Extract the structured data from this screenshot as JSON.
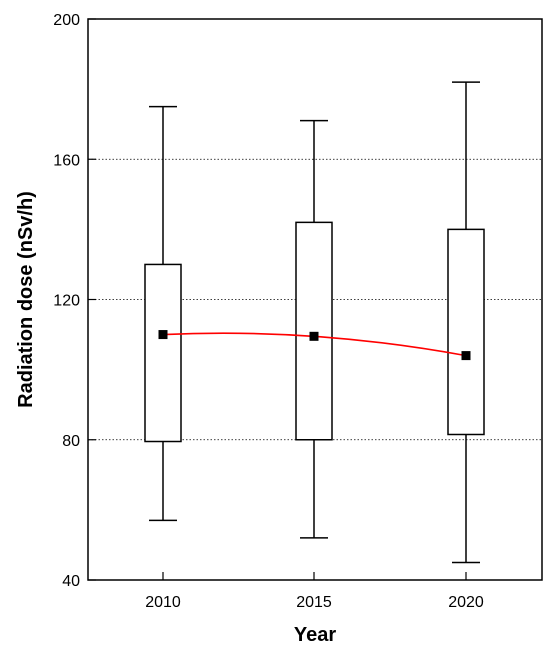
{
  "chart_data": {
    "type": "box",
    "title": "",
    "xlabel": "Year",
    "ylabel": "Radiation dose (nSv/h)",
    "ylim": [
      40,
      200
    ],
    "yticks": [
      40,
      80,
      120,
      160,
      200
    ],
    "grid": "horizontal dotted at 80, 120, 160",
    "categories": [
      "2010",
      "2015",
      "2020"
    ],
    "boxes": [
      {
        "category": "2010",
        "min": 57,
        "q1": 79.5,
        "q3": 130,
        "max": 175,
        "mean": 110
      },
      {
        "category": "2015",
        "min": 52,
        "q1": 80,
        "q3": 142,
        "max": 171,
        "mean": 109.5
      },
      {
        "category": "2020",
        "min": 45,
        "q1": 81.5,
        "q3": 140,
        "max": 182,
        "mean": 104
      }
    ],
    "trend_line": {
      "color": "#ff0000",
      "through": "means"
    },
    "colors": {
      "box_fill": "#ffffff",
      "stroke": "#000000",
      "mean_marker": "#000000",
      "trend": "#ff0000"
    }
  }
}
